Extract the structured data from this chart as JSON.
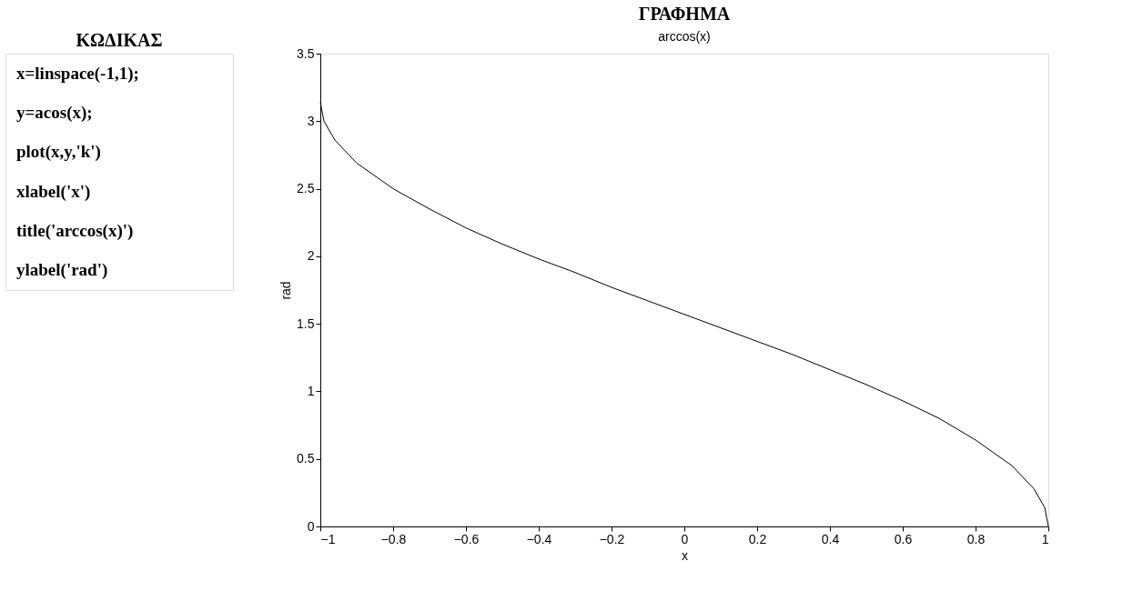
{
  "chart_data": {
    "type": "line",
    "title": "arccos(x)",
    "xlabel": "x",
    "ylabel": "rad",
    "annotations": [
      "ΚΩΔΙΚΑΣ",
      "ΓΡΑΦΗΜΑ",
      "x=linspace(-1,1);",
      "y=acos(x);",
      "plot(x,y,'k')",
      "xlabel('x')",
      "title('arccos(x)')",
      "ylabel('rad')"
    ],
    "x": [
      -1,
      -0.99,
      -0.96,
      -0.9,
      -0.8,
      -0.7,
      -0.6,
      -0.5,
      -0.4,
      -0.3,
      -0.2,
      -0.1,
      0,
      0.1,
      0.2,
      0.3,
      0.4,
      0.5,
      0.6,
      0.7,
      0.8,
      0.9,
      0.96,
      0.99,
      1
    ],
    "series": [
      {
        "color": "#000000",
        "values": [
          3.14,
          3.0,
          2.86,
          2.69,
          2.5,
          2.35,
          2.21,
          2.09,
          1.98,
          1.88,
          1.77,
          1.67,
          1.57,
          1.47,
          1.37,
          1.27,
          1.16,
          1.05,
          0.93,
          0.8,
          0.64,
          0.45,
          0.28,
          0.14,
          0
        ]
      }
    ],
    "xlim": [
      -1,
      1
    ],
    "ylim": [
      0,
      3.5
    ],
    "xticks": [
      -1,
      -0.8,
      -0.6,
      -0.4,
      -0.2,
      0,
      0.2,
      0.4,
      0.6,
      0.8,
      1
    ],
    "yticks": [
      0,
      0.5,
      1,
      1.5,
      2,
      2.5,
      3,
      3.5
    ],
    "grid": false,
    "legend": false,
    "marker": "none",
    "line_style": "solid"
  }
}
